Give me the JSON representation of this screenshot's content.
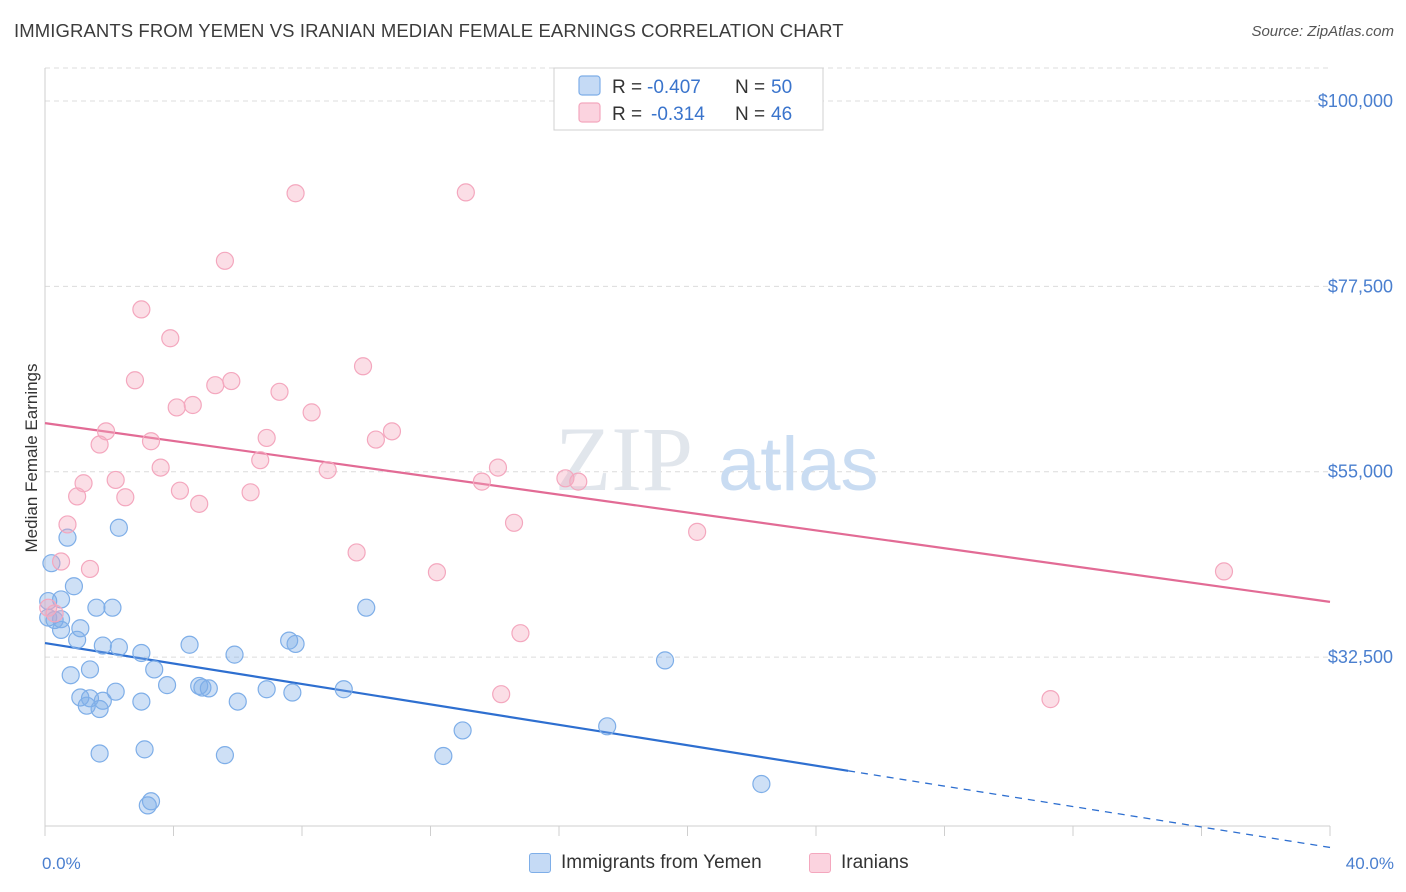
{
  "title": "IMMIGRANTS FROM YEMEN VS IRANIAN MEDIAN FEMALE EARNINGS CORRELATION CHART",
  "source": "Source: ZipAtlas.com",
  "watermark": {
    "zip": "ZIP",
    "atlas": "atlas"
  },
  "legend": {
    "rows": [
      {
        "r_label": "R =",
        "r_value": "-0.407",
        "n_label": "N =",
        "n_value": "50"
      },
      {
        "r_label": "R =",
        "r_value": "-0.314",
        "n_label": "N =",
        "n_value": "46"
      }
    ]
  },
  "bottom_legend": [
    "Immigrants from Yemen",
    "Iranians"
  ],
  "chart_data": {
    "type": "scatter",
    "title": "IMMIGRANTS FROM YEMEN VS IRANIAN MEDIAN FEMALE EARNINGS CORRELATION CHART",
    "ylabel": "Median Female Earnings",
    "xlabel": "",
    "xlim": [
      0,
      40
    ],
    "ylim": [
      12000,
      104000
    ],
    "x_tick_labels": [
      "0.0%",
      "40.0%"
    ],
    "y_ticks": [
      32500,
      55000,
      77500,
      100000
    ],
    "y_tick_labels": [
      "$32,500",
      "$55,000",
      "$77,500",
      "$100,000"
    ],
    "grid": true,
    "legend_position": "top-center",
    "series": [
      {
        "name": "Immigrants from Yemen",
        "color": "#7eaee8",
        "line_color": "#2e6fd0",
        "trend": {
          "x": [
            0,
            25
          ],
          "y": [
            34200,
            18700
          ],
          "dashed_to_x": 40
        },
        "points": [
          [
            0.1,
            39300
          ],
          [
            0.1,
            37300
          ],
          [
            0.2,
            43900
          ],
          [
            0.3,
            37000
          ],
          [
            0.5,
            35800
          ],
          [
            0.5,
            37100
          ],
          [
            0.5,
            39500
          ],
          [
            0.7,
            47000
          ],
          [
            0.8,
            30300
          ],
          [
            0.9,
            41100
          ],
          [
            1.0,
            34600
          ],
          [
            1.1,
            36000
          ],
          [
            1.1,
            27600
          ],
          [
            1.3,
            26600
          ],
          [
            1.4,
            27500
          ],
          [
            1.4,
            31000
          ],
          [
            1.6,
            38500
          ],
          [
            1.7,
            20800
          ],
          [
            1.7,
            26200
          ],
          [
            1.8,
            33900
          ],
          [
            1.8,
            27200
          ],
          [
            2.1,
            38500
          ],
          [
            2.2,
            28300
          ],
          [
            2.3,
            48200
          ],
          [
            2.3,
            33700
          ],
          [
            3.0,
            33000
          ],
          [
            3.0,
            27100
          ],
          [
            3.1,
            21300
          ],
          [
            3.2,
            14500
          ],
          [
            3.3,
            15000
          ],
          [
            3.4,
            31000
          ],
          [
            3.8,
            29100
          ],
          [
            4.5,
            34000
          ],
          [
            4.8,
            29000
          ],
          [
            4.9,
            28800
          ],
          [
            5.1,
            28700
          ],
          [
            5.6,
            20600
          ],
          [
            5.9,
            32800
          ],
          [
            6.0,
            27100
          ],
          [
            6.9,
            28600
          ],
          [
            7.6,
            34500
          ],
          [
            7.7,
            28200
          ],
          [
            7.8,
            34100
          ],
          [
            9.3,
            28600
          ],
          [
            10.0,
            38500
          ],
          [
            12.4,
            20500
          ],
          [
            13.0,
            23600
          ],
          [
            17.5,
            24100
          ],
          [
            19.3,
            32100
          ],
          [
            22.3,
            17100
          ]
        ]
      },
      {
        "name": "Iranians",
        "color": "#f4a7be",
        "line_color": "#e26b95",
        "trend": {
          "x": [
            0,
            40
          ],
          "y": [
            60900,
            39200
          ]
        },
        "points": [
          [
            0.1,
            38500
          ],
          [
            0.3,
            37800
          ],
          [
            0.5,
            44100
          ],
          [
            0.7,
            48600
          ],
          [
            1.0,
            52000
          ],
          [
            1.2,
            53600
          ],
          [
            1.4,
            43200
          ],
          [
            1.7,
            58300
          ],
          [
            1.9,
            59900
          ],
          [
            2.2,
            54000
          ],
          [
            2.5,
            51900
          ],
          [
            2.8,
            66100
          ],
          [
            3.0,
            74700
          ],
          [
            3.3,
            58700
          ],
          [
            3.6,
            55500
          ],
          [
            3.9,
            71200
          ],
          [
            4.1,
            62800
          ],
          [
            4.2,
            52700
          ],
          [
            4.6,
            63100
          ],
          [
            4.8,
            51100
          ],
          [
            5.3,
            65500
          ],
          [
            5.6,
            80600
          ],
          [
            5.8,
            66000
          ],
          [
            6.4,
            52500
          ],
          [
            6.7,
            56400
          ],
          [
            6.9,
            59100
          ],
          [
            7.3,
            64700
          ],
          [
            7.8,
            88800
          ],
          [
            8.3,
            62200
          ],
          [
            8.8,
            55200
          ],
          [
            9.7,
            45200
          ],
          [
            9.9,
            67800
          ],
          [
            10.3,
            58900
          ],
          [
            10.8,
            59900
          ],
          [
            12.2,
            42800
          ],
          [
            13.1,
            88900
          ],
          [
            13.6,
            53800
          ],
          [
            14.1,
            55500
          ],
          [
            14.2,
            28000
          ],
          [
            14.6,
            48800
          ],
          [
            14.8,
            35400
          ],
          [
            16.2,
            54200
          ],
          [
            16.6,
            53800
          ],
          [
            20.3,
            47700
          ],
          [
            31.3,
            27400
          ],
          [
            36.7,
            42900
          ]
        ]
      }
    ]
  }
}
